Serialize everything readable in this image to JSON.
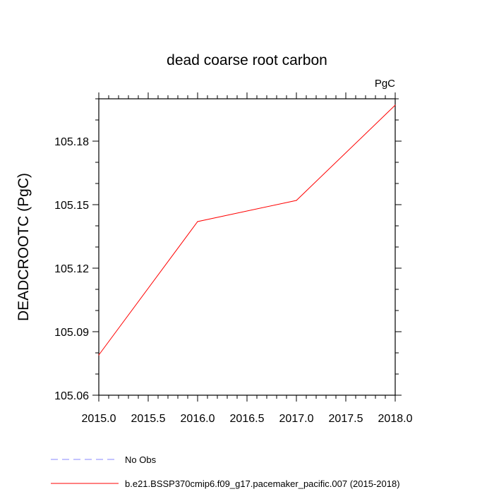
{
  "chart_data": {
    "type": "line",
    "title": "dead coarse root carbon",
    "units_label": "PgC",
    "ylabel": "DEADCROOTC  (PgC)",
    "xlabel": "",
    "xlim": [
      2015.0,
      2018.0
    ],
    "ylim": [
      105.06,
      105.2
    ],
    "x_ticks": [
      "2015.0",
      "2015.5",
      "2016.0",
      "2016.5",
      "2017.0",
      "2017.5",
      "2018.0"
    ],
    "x_tick_values": [
      2015.0,
      2015.5,
      2016.0,
      2016.5,
      2017.0,
      2017.5,
      2018.0
    ],
    "y_ticks": [
      "105.06",
      "105.09",
      "105.12",
      "105.15",
      "105.18"
    ],
    "y_tick_values": [
      105.06,
      105.09,
      105.12,
      105.15,
      105.18
    ],
    "grid": false,
    "legend_position": "bottom",
    "series": [
      {
        "name": "b.e21.BSSP370cmip6.f09_g17.pacemaker_pacific.007 (2015-2018)",
        "color": "#ff0000",
        "style": "solid",
        "x": [
          2015.0,
          2016.0,
          2017.0,
          2018.0
        ],
        "y": [
          105.079,
          105.142,
          105.152,
          105.197
        ]
      }
    ],
    "legend": [
      {
        "label": "No Obs",
        "color": "#8a8aff",
        "style": "dashed"
      },
      {
        "label": "b.e21.BSSP370cmip6.f09_g17.pacemaker_pacific.007 (2015-2018)",
        "color": "#ff0000",
        "style": "solid"
      }
    ]
  }
}
